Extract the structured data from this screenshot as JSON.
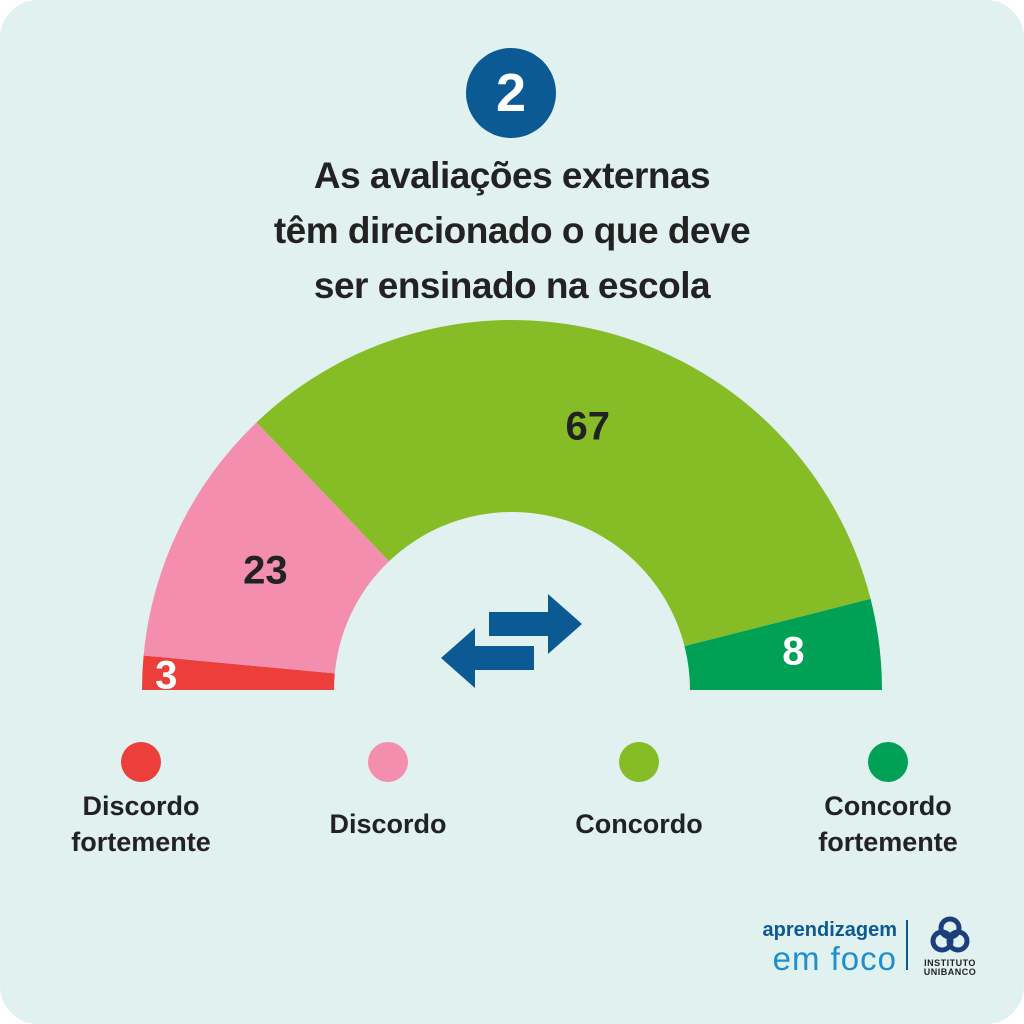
{
  "badge_number": "2",
  "title_lines": [
    "As avaliações externas",
    "têm direcionado o que deve",
    "ser ensinado na escola"
  ],
  "chart_data": {
    "type": "pie",
    "style": "half-donut",
    "categories": [
      "Discordo fortemente",
      "Discordo",
      "Concordo",
      "Concordo fortemente"
    ],
    "values": [
      3,
      23,
      67,
      8
    ],
    "data_labels": [
      "3",
      "23",
      "67",
      "8"
    ],
    "colors": [
      "#ec3e3a",
      "#f48eae",
      "#86bc25",
      "#00a154"
    ],
    "label_colors": [
      "#ffffff",
      "#222222",
      "#222222",
      "#ffffff"
    ]
  },
  "legend": [
    {
      "line1": "Discordo",
      "line2": "fortemente",
      "color": "#ec3e3a"
    },
    {
      "line1": "Discordo",
      "line2": "",
      "color": "#f48eae"
    },
    {
      "line1": "Concordo",
      "line2": "",
      "color": "#86bc25"
    },
    {
      "line1": "Concordo",
      "line2": "fortemente",
      "color": "#00a154"
    }
  ],
  "center_icon": "swap-arrows-icon",
  "footer": {
    "brand_top": "aprendizagem",
    "brand_bottom": "em foco",
    "logo_text_1": "INSTITUTO",
    "logo_text_2": "UNIBANCO"
  }
}
